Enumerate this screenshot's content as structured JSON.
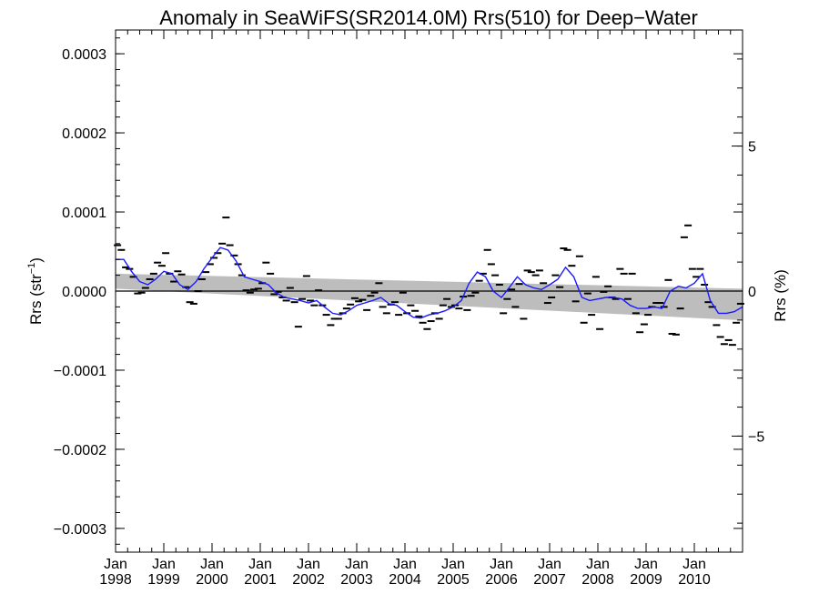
{
  "chart_data": {
    "type": "scatter",
    "title": "Anomaly in SeaWiFS(SR2014.0M) Rrs(510) for Deep−Water",
    "ylabel_main": "Rrs (str",
    "ylabel_sup": "−1",
    "ylabel_close": ")",
    "y2label": "Rrs (%)",
    "ylim": [
      -0.00033,
      0.00033
    ],
    "y2lim": [
      -9.0,
      9.0
    ],
    "x_range": [
      1998.0,
      2011.0
    ],
    "yticks": [
      -0.0003,
      -0.0002,
      -0.0001,
      0.0,
      0.0001,
      0.0002,
      0.0003
    ],
    "ytick_labels": [
      "−0.0003",
      "−0.0002",
      "−0.0001",
      "0.0000",
      "0.0001",
      "0.0002",
      "0.0003"
    ],
    "y2ticks": [
      -5,
      0,
      5
    ],
    "y2tick_labels": [
      "−5",
      "0",
      "5"
    ],
    "xticks": [
      {
        "year": 1998,
        "month": "Jan",
        "label": "1998"
      },
      {
        "year": 1999,
        "month": "Jan",
        "label": "1999"
      },
      {
        "year": 2000,
        "month": "Jan",
        "label": "2000"
      },
      {
        "year": 2001,
        "month": "Jan",
        "label": "2001"
      },
      {
        "year": 2002,
        "month": "Jan",
        "label": "2002"
      },
      {
        "year": 2003,
        "month": "Jan",
        "label": "2003"
      },
      {
        "year": 2004,
        "month": "Jan",
        "label": "2004"
      },
      {
        "year": 2005,
        "month": "Jan",
        "label": "2005"
      },
      {
        "year": 2006,
        "month": "Jan",
        "label": "2006"
      },
      {
        "year": 2007,
        "month": "Jan",
        "label": "2007"
      },
      {
        "year": 2008,
        "month": "Jan",
        "label": "2008"
      },
      {
        "year": 2009,
        "month": "Jan",
        "label": "2009"
      },
      {
        "year": 2010,
        "month": "Jan",
        "label": "2010"
      }
    ],
    "colors": {
      "points": "#000000",
      "smooth_line": "#1a1aff",
      "band": "#bdbdbd",
      "zero_line": "#000000"
    },
    "confidence_band": {
      "x": [
        1998.0,
        2011.0
      ],
      "upper": [
        2.2e-05,
        3e-06
      ],
      "lower": [
        3e-06,
        -3.7e-05
      ]
    },
    "series": [
      {
        "kind": "monthly_points",
        "x": [
          1998.04,
          1998.12,
          1998.21,
          1998.29,
          1998.37,
          1998.46,
          1998.54,
          1998.62,
          1998.71,
          1998.79,
          1998.87,
          1998.96,
          1999.04,
          1999.12,
          1999.21,
          1999.29,
          1999.37,
          1999.46,
          1999.54,
          1999.62,
          1999.71,
          1999.79,
          1999.87,
          1999.96,
          2000.04,
          2000.12,
          2000.21,
          2000.29,
          2000.37,
          2000.46,
          2000.54,
          2000.62,
          2000.71,
          2000.79,
          2000.87,
          2000.96,
          2001.04,
          2001.12,
          2001.21,
          2001.29,
          2001.37,
          2001.46,
          2001.54,
          2001.62,
          2001.71,
          2001.79,
          2001.87,
          2001.96,
          2002.04,
          2002.12,
          2002.21,
          2002.29,
          2002.37,
          2002.46,
          2002.54,
          2002.62,
          2002.71,
          2002.79,
          2002.87,
          2002.96,
          2003.04,
          2003.12,
          2003.21,
          2003.29,
          2003.37,
          2003.46,
          2003.54,
          2003.62,
          2003.71,
          2003.79,
          2003.87,
          2003.96,
          2004.04,
          2004.12,
          2004.21,
          2004.29,
          2004.37,
          2004.46,
          2004.54,
          2004.62,
          2004.71,
          2004.79,
          2004.87,
          2004.96,
          2005.04,
          2005.12,
          2005.21,
          2005.29,
          2005.37,
          2005.46,
          2005.54,
          2005.62,
          2005.71,
          2005.79,
          2005.87,
          2005.96,
          2006.04,
          2006.12,
          2006.21,
          2006.29,
          2006.37,
          2006.46,
          2006.54,
          2006.62,
          2006.71,
          2006.79,
          2006.87,
          2006.96,
          2007.04,
          2007.12,
          2007.21,
          2007.29,
          2007.37,
          2007.46,
          2007.54,
          2007.62,
          2007.71,
          2007.79,
          2007.87,
          2007.96,
          2008.04,
          2008.12,
          2008.21,
          2008.29,
          2008.37,
          2008.46,
          2008.54,
          2008.62,
          2008.71,
          2008.79,
          2008.87,
          2008.96,
          2009.04,
          2009.12,
          2009.21,
          2009.29,
          2009.37,
          2009.46,
          2009.54,
          2009.62,
          2009.71,
          2009.79,
          2009.87,
          2009.96,
          2010.04,
          2010.12,
          2010.21,
          2010.29,
          2010.37,
          2010.46,
          2010.54,
          2010.62,
          2010.71,
          2010.79,
          2010.87,
          2010.96
        ],
        "y": [
          5.8e-05,
          5.2e-05,
          3e-05,
          2.8e-05,
          1.8e-05,
          -3e-06,
          -2e-06,
          4e-06,
          1.5e-05,
          2.2e-05,
          3.6e-05,
          3.2e-05,
          4.8e-05,
          2.2e-05,
          1.2e-05,
          2.5e-05,
          2.1e-05,
          5e-06,
          -1.4e-05,
          -1.6e-05,
          0.0,
          1.5e-05,
          2.4e-05,
          3.4e-05,
          4.2e-05,
          4.8e-05,
          6e-05,
          9.3e-05,
          5.8e-05,
          4.5e-05,
          3.4e-05,
          2e-05,
          1e-06,
          -2e-06,
          2e-06,
          3e-06,
          1e-05,
          3.6e-05,
          2.2e-05,
          -4e-06,
          -1e-06,
          -8e-06,
          -1.2e-05,
          4e-06,
          -1.4e-05,
          -4.5e-05,
          -1e-05,
          1.9e-05,
          -1.2e-05,
          -1.8e-05,
          1e-06,
          -1.8e-05,
          -3e-05,
          -4.3e-05,
          -3.5e-05,
          -3.5e-05,
          -2.8e-05,
          -2.2e-05,
          -1.7e-05,
          -9e-06,
          -1.3e-05,
          -1.1e-05,
          -2.4e-05,
          -6e-06,
          -2e-06,
          1e-05,
          -2e-05,
          -2.8e-05,
          -1.7e-05,
          -1.4e-05,
          -3e-05,
          -2e-06,
          -2.8e-05,
          -1.8e-05,
          -2.5e-05,
          -3.2e-05,
          -4e-05,
          -4.8e-05,
          -3.8e-05,
          -2.8e-05,
          -3.5e-05,
          -1.8e-05,
          -1e-05,
          -2e-05,
          -1.8e-05,
          -2.2e-05,
          -7e-06,
          -2.4e-05,
          -6e-06,
          -2e-06,
          1.3e-05,
          2.2e-05,
          5.2e-05,
          3.4e-05,
          2e-05,
          8e-06,
          -2.8e-05,
          -1e-05,
          2e-06,
          -2e-05,
          9e-06,
          -3.5e-05,
          2.6e-05,
          2.4e-05,
          2e-05,
          2.6e-05,
          1e-05,
          -1.5e-05,
          -8e-06,
          2e-05,
          5e-06,
          5.4e-05,
          5.2e-05,
          3.2e-05,
          -1.3e-05,
          4.4e-05,
          -4e-05,
          -3e-06,
          -3e-05,
          1.8e-05,
          -4.8e-05,
          -1e-06,
          6e-06,
          -8e-06,
          -1e-05,
          2.8e-05,
          2.2e-05,
          -1e-05,
          2.2e-05,
          -2.8e-05,
          -5.2e-05,
          -4.2e-05,
          -3e-05,
          -2e-05,
          -1.5e-05,
          -1.5e-05,
          -2e-05,
          1.4e-05,
          -5.4e-05,
          -5.5e-05,
          -2.2e-05,
          6.8e-05,
          8.3e-05,
          2.8e-05,
          1.8e-05,
          2.8e-05,
          8e-06,
          -1.4e-05,
          -2e-05,
          -4.3e-05,
          -5.8e-05,
          -6.7e-05,
          -6.2e-05,
          -6.8e-05,
          -4e-05,
          -1.6e-05
        ]
      },
      {
        "kind": "running_mean",
        "x": [
          1998.0,
          1998.17,
          1998.33,
          1998.5,
          1998.67,
          1998.83,
          1999.0,
          1999.17,
          1999.33,
          1999.5,
          1999.67,
          1999.83,
          2000.0,
          2000.17,
          2000.33,
          2000.5,
          2000.67,
          2000.83,
          2001.0,
          2001.17,
          2001.33,
          2001.5,
          2001.67,
          2001.83,
          2002.0,
          2002.17,
          2002.33,
          2002.5,
          2002.67,
          2002.83,
          2003.0,
          2003.17,
          2003.33,
          2003.5,
          2003.67,
          2003.83,
          2004.0,
          2004.17,
          2004.33,
          2004.5,
          2004.67,
          2004.83,
          2005.0,
          2005.17,
          2005.33,
          2005.5,
          2005.67,
          2005.83,
          2006.0,
          2006.17,
          2006.33,
          2006.5,
          2006.67,
          2006.83,
          2007.0,
          2007.17,
          2007.33,
          2007.5,
          2007.67,
          2007.83,
          2008.0,
          2008.17,
          2008.33,
          2008.5,
          2008.67,
          2008.83,
          2009.0,
          2009.17,
          2009.33,
          2009.5,
          2009.67,
          2009.83,
          2010.0,
          2010.17,
          2010.33,
          2010.5,
          2010.67,
          2010.83,
          2011.0
        ],
        "y": [
          4e-05,
          4e-05,
          2.5e-05,
          1.2e-05,
          8e-06,
          1.5e-05,
          2.5e-05,
          2.2e-05,
          8e-06,
          2e-06,
          1.2e-05,
          2.8e-05,
          4.2e-05,
          5.5e-05,
          5.2e-05,
          3.8e-05,
          1.8e-05,
          1.5e-05,
          1.2e-05,
          8e-06,
          -2e-06,
          -8e-06,
          -1e-05,
          -1.2e-05,
          -1.5e-05,
          -1.2e-05,
          -2e-05,
          -2.8e-05,
          -3e-05,
          -2.5e-05,
          -1.8e-05,
          -1.5e-05,
          -1.2e-05,
          -8e-06,
          -1.6e-05,
          -1.8e-05,
          -2.6e-05,
          -3.3e-05,
          -3.4e-05,
          -3e-05,
          -2.8e-05,
          -2.5e-05,
          -2e-05,
          -1.2e-05,
          1e-05,
          2.4e-05,
          1.8e-05,
          0.0,
          -8e-06,
          5e-06,
          1.8e-05,
          8e-06,
          4e-06,
          2e-06,
          8e-06,
          1.5e-05,
          3e-05,
          1.8e-05,
          -8e-06,
          -1.2e-05,
          -1e-05,
          -8e-06,
          -8e-06,
          -1e-05,
          -1.8e-05,
          -2.2e-05,
          -2.2e-05,
          -2e-05,
          -2.2e-05,
          0.0,
          6e-06,
          4e-06,
          1e-05,
          2.2e-05,
          -1.2e-05,
          -2.8e-05,
          -2.8e-05,
          -2.6e-05,
          -2e-05
        ]
      }
    ]
  }
}
